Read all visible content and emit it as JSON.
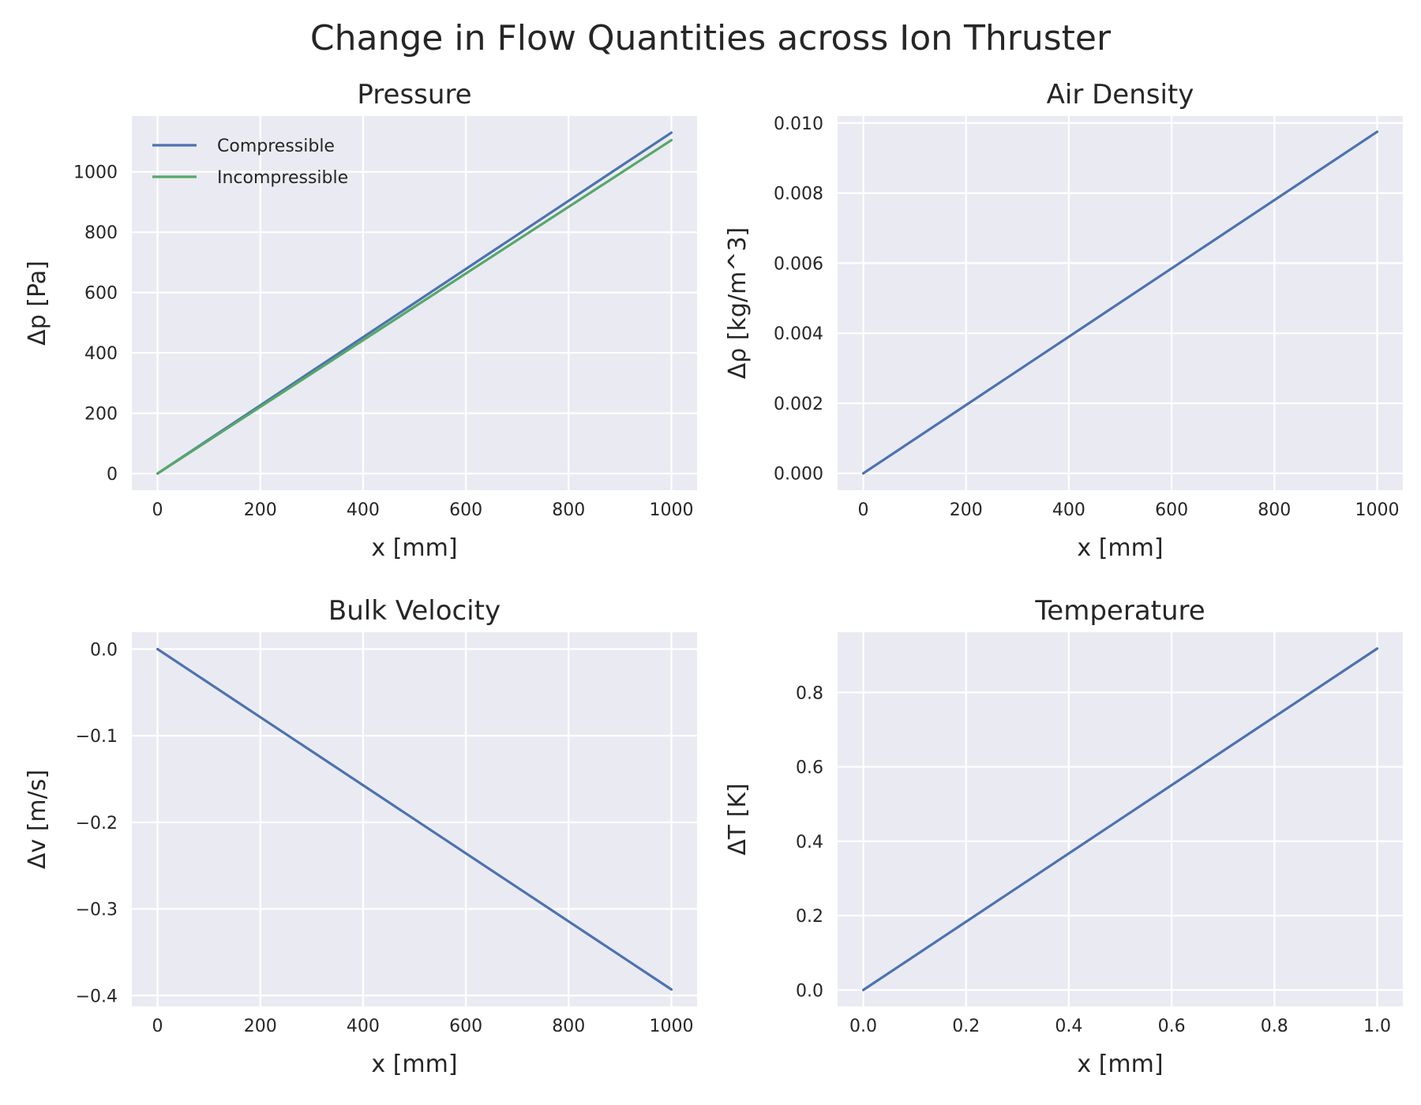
{
  "figure": {
    "title": "Change in Flow Quantities across Ion Thruster"
  },
  "chart_data": [
    {
      "type": "line",
      "title": "Pressure",
      "xlabel": "x [mm]",
      "ylabel": "Δp [Pa]",
      "xlim": [
        -50,
        1050
      ],
      "ylim": [
        -55,
        1185
      ],
      "xticks": [
        0,
        200,
        400,
        600,
        800,
        1000
      ],
      "xtick_labels": [
        "0",
        "200",
        "400",
        "600",
        "800",
        "1000"
      ],
      "yticks": [
        0,
        200,
        400,
        600,
        800,
        1000
      ],
      "ytick_labels": [
        "0",
        "200",
        "400",
        "600",
        "800",
        "1000"
      ],
      "grid": true,
      "legend": "upper-left",
      "series": [
        {
          "name": "Compressible",
          "color": "#4c72b0",
          "x": [
            0,
            1000
          ],
          "y": [
            0,
            1130
          ]
        },
        {
          "name": "Incompressible",
          "color": "#55a868",
          "x": [
            0,
            1000
          ],
          "y": [
            0,
            1105
          ]
        }
      ]
    },
    {
      "type": "line",
      "title": "Air Density",
      "xlabel": "x [mm]",
      "ylabel": "Δρ [kg/m^3]",
      "xlim": [
        -50,
        1050
      ],
      "ylim": [
        -0.00048,
        0.0102
      ],
      "xticks": [
        0,
        200,
        400,
        600,
        800,
        1000
      ],
      "xtick_labels": [
        "0",
        "200",
        "400",
        "600",
        "800",
        "1000"
      ],
      "yticks": [
        0,
        0.002,
        0.004,
        0.006,
        0.008,
        0.01
      ],
      "ytick_labels": [
        "0.000",
        "0.002",
        "0.004",
        "0.006",
        "0.008",
        "0.010"
      ],
      "grid": true,
      "series": [
        {
          "color": "#4c72b0",
          "x": [
            0,
            1000
          ],
          "y": [
            0,
            0.00975
          ]
        }
      ]
    },
    {
      "type": "line",
      "title": "Bulk Velocity",
      "xlabel": "x [mm]",
      "ylabel": "Δv [m/s]",
      "xlim": [
        -50,
        1050
      ],
      "ylim": [
        -0.4125,
        0.0195
      ],
      "xticks": [
        0,
        200,
        400,
        600,
        800,
        1000
      ],
      "xtick_labels": [
        "0",
        "200",
        "400",
        "600",
        "800",
        "1000"
      ],
      "yticks": [
        0,
        -0.1,
        -0.2,
        -0.3,
        -0.4
      ],
      "ytick_labels": [
        "0.0",
        "−0.1",
        "−0.2",
        "−0.3",
        "−0.4"
      ],
      "grid": true,
      "series": [
        {
          "color": "#4c72b0",
          "x": [
            0,
            1000
          ],
          "y": [
            0,
            -0.393
          ]
        }
      ]
    },
    {
      "type": "line",
      "title": "Temperature",
      "xlabel": "x [mm]",
      "ylabel": "ΔT [K]",
      "xlim": [
        -0.05,
        1.05
      ],
      "ylim": [
        -0.044,
        0.962
      ],
      "xticks": [
        0,
        0.2,
        0.4,
        0.6,
        0.8,
        1.0
      ],
      "xtick_labels": [
        "0.0",
        "0.2",
        "0.4",
        "0.6",
        "0.8",
        "1.0"
      ],
      "yticks": [
        0,
        0.2,
        0.4,
        0.6,
        0.8
      ],
      "ytick_labels": [
        "0.0",
        "0.2",
        "0.4",
        "0.6",
        "0.8"
      ],
      "grid": true,
      "series": [
        {
          "color": "#4c72b0",
          "x": [
            0,
            1.0
          ],
          "y": [
            0,
            0.918
          ]
        }
      ]
    }
  ]
}
